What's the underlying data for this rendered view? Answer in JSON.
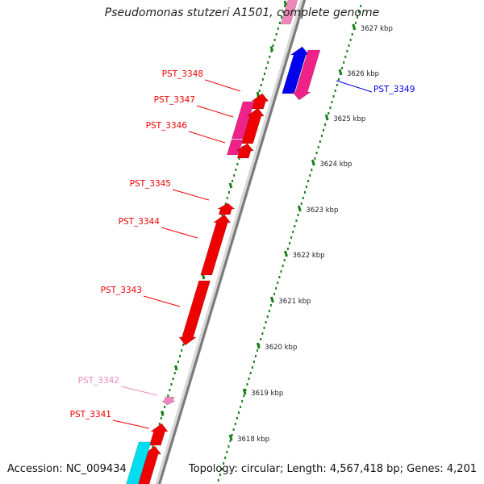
{
  "title": "Pseudomonas stutzeri A1501, complete genome",
  "footer": {
    "accession": "Accession: NC_009434",
    "summary": "Topology: circular; Length: 4,567,418 bp; Genes: 4,201"
  },
  "colors": {
    "gene_red": "#ee0000",
    "gene_magenta": "#ee2288",
    "gene_blue": "#0000ee",
    "gene_cyan": "#00ddee",
    "gene_pink": "#ee88bb",
    "tick_green": "#1a7f1a",
    "backbone": "#8a8a8a"
  },
  "scale_ticks": [
    {
      "kbp": 3627,
      "label": "3627 kbp"
    },
    {
      "kbp": 3626,
      "label": "3626 kbp"
    },
    {
      "kbp": 3625,
      "label": "3625 kbp"
    },
    {
      "kbp": 3624,
      "label": "3624 kbp"
    },
    {
      "kbp": 3623,
      "label": "3623 kbp"
    },
    {
      "kbp": 3622,
      "label": "3622 kbp"
    },
    {
      "kbp": 3621,
      "label": "3621 kbp"
    },
    {
      "kbp": 3620,
      "label": "3620 kbp"
    },
    {
      "kbp": 3619,
      "label": "3619 kbp"
    },
    {
      "kbp": 3618,
      "label": "3618 kbp"
    }
  ],
  "gene_labels": [
    {
      "name": "PST_3349",
      "color": "blue"
    },
    {
      "name": "PST_3348",
      "color": "red"
    },
    {
      "name": "PST_3347",
      "color": "red"
    },
    {
      "name": "PST_3346",
      "color": "red"
    },
    {
      "name": "PST_3345",
      "color": "red"
    },
    {
      "name": "PST_3344",
      "color": "red"
    },
    {
      "name": "PST_3343",
      "color": "red"
    },
    {
      "name": "PST_3342",
      "color": "pink"
    },
    {
      "name": "PST_3341",
      "color": "red"
    }
  ]
}
